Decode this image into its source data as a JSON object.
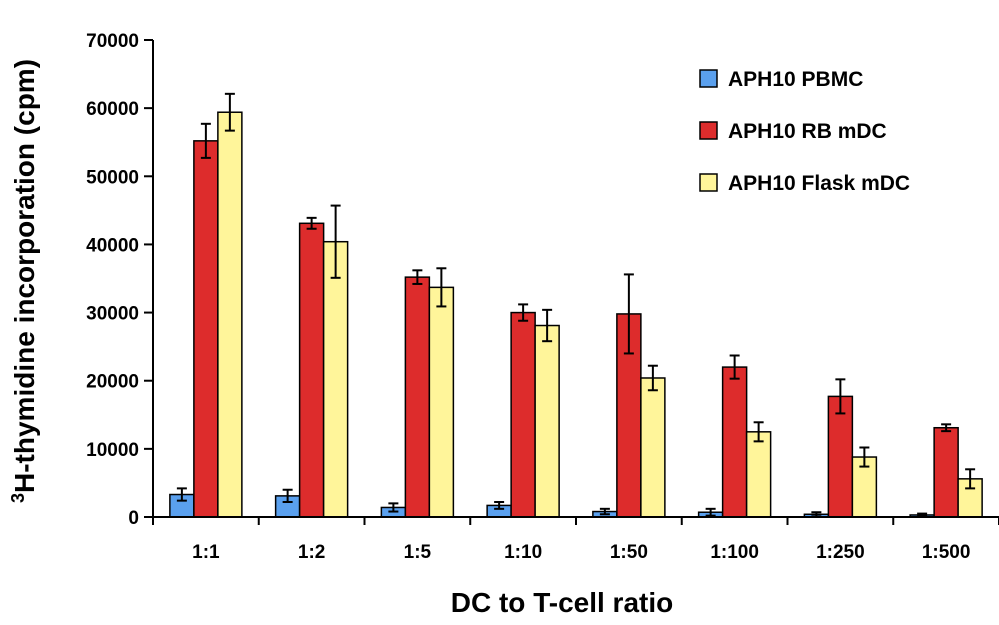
{
  "chart_data": {
    "type": "bar",
    "xlabel": "DC to T-cell ratio",
    "ylabel": {
      "superscript": "3",
      "text": "H-thymidine incorporation (cpm)"
    },
    "ylim": [
      0,
      70000
    ],
    "yticks": [
      "0",
      "10000",
      "20000",
      "30000",
      "40000",
      "50000",
      "60000",
      "70000"
    ],
    "categories": [
      "1:1",
      "1:2",
      "1:5",
      "1:10",
      "1:50",
      "1:100",
      "1:250",
      "1:500"
    ],
    "grid": false,
    "legend_position": "top-right",
    "error_bars": true,
    "series": [
      {
        "name": "APH10 PBMC",
        "color": "#5aa0ee",
        "values": [
          3300,
          3100,
          1400,
          1700,
          800,
          700,
          400,
          300
        ],
        "errors": [
          900,
          900,
          600,
          500,
          400,
          500,
          300,
          200
        ]
      },
      {
        "name": "APH10 RB mDC",
        "color": "#dd2c2c",
        "values": [
          55200,
          43100,
          35200,
          30000,
          29800,
          22000,
          17700,
          13100
        ],
        "errors": [
          2500,
          800,
          1000,
          1200,
          5800,
          1700,
          2500,
          500
        ]
      },
      {
        "name": "APH10 Flask mDC",
        "color": "#fff59a",
        "values": [
          59400,
          40400,
          33700,
          28100,
          20400,
          12500,
          8800,
          5600
        ],
        "errors": [
          2700,
          5300,
          2800,
          2300,
          1800,
          1400,
          1400,
          1400
        ]
      }
    ]
  }
}
